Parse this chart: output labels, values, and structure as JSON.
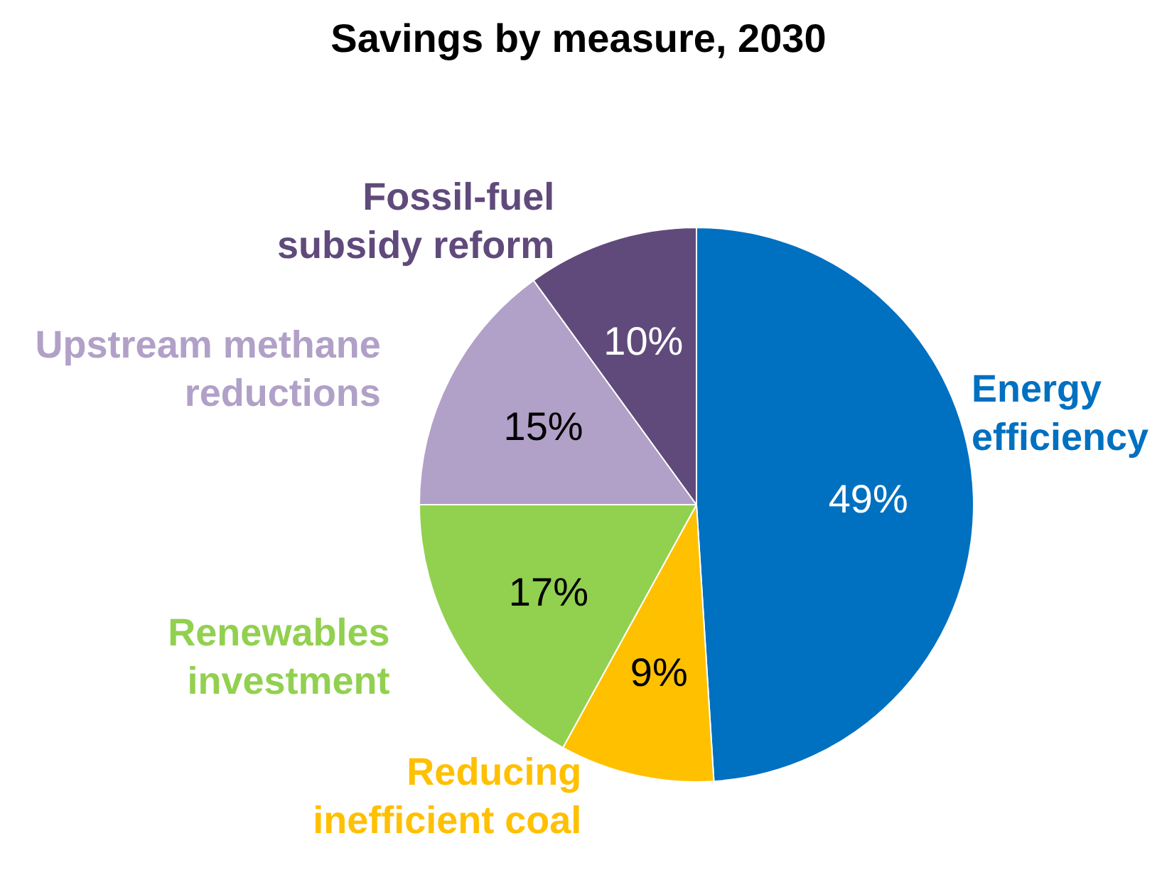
{
  "chart_data": {
    "type": "pie",
    "title": "Savings by measure, 2030",
    "categories": [
      "Energy efficiency",
      "Reducing inefficient coal",
      "Renewables investment",
      "Upstream methane reductions",
      "Fossil-fuel subsidy reform"
    ],
    "values": [
      49,
      9,
      17,
      15,
      10
    ],
    "value_labels": [
      "49%",
      "9%",
      "17%",
      "15%",
      "10%"
    ],
    "colors": [
      "#0070c0",
      "#ffc000",
      "#92d050",
      "#b1a0c7",
      "#604a7b"
    ],
    "legend": false
  }
}
